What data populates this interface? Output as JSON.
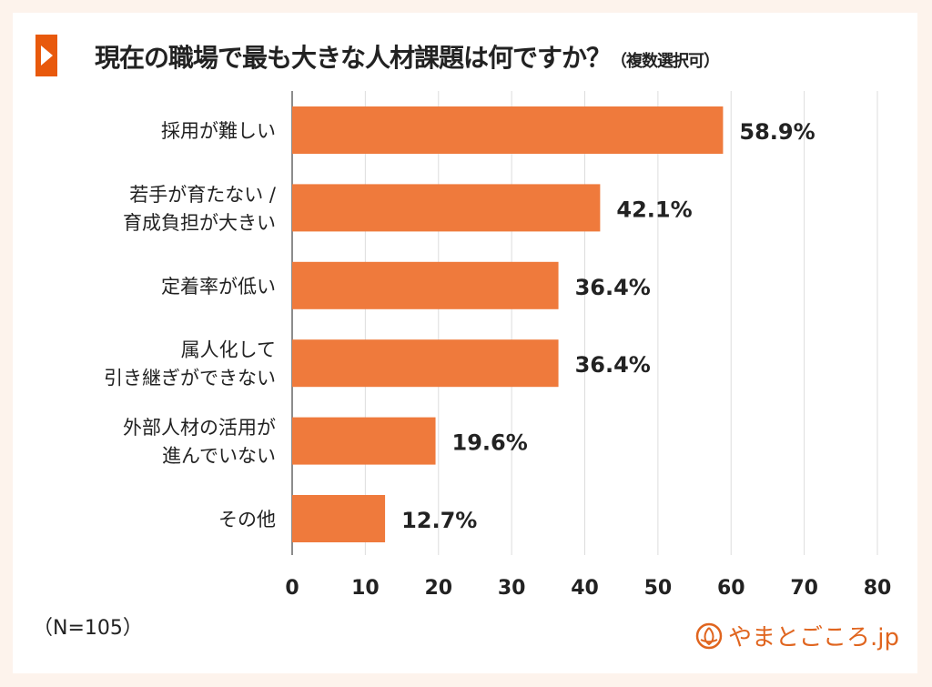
{
  "chart_data": {
    "type": "bar",
    "orientation": "horizontal",
    "title": "現在の職場で最も大きな人材課題は何ですか？",
    "subtitle": "（複数選択可）",
    "categories": [
      "採用が難しい",
      "若手が育たない /\n育成負担が大きい",
      "定着率が低い",
      "属人化して\n引き継ぎができない",
      "外部人材の活用が\n進んでいない",
      "その他"
    ],
    "values": [
      58.9,
      42.1,
      36.4,
      36.4,
      19.6,
      12.7
    ],
    "data_labels": [
      "58.9%",
      "42.1%",
      "36.4%",
      "36.4%",
      "19.6%",
      "12.7%"
    ],
    "xlim": [
      0,
      80
    ],
    "xticks": [
      "0",
      "10",
      "20",
      "30",
      "40",
      "50",
      "60",
      "70",
      "80"
    ],
    "grid": true,
    "bar_color": "#ef7a3c"
  },
  "note": "（N=105）",
  "logo": {
    "text": "やまとごころ.jp",
    "color": "#e0651f"
  }
}
